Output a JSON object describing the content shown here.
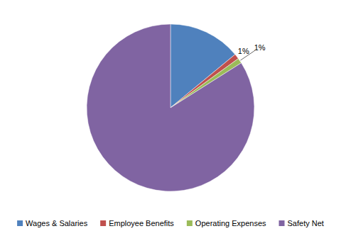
{
  "chart_data": {
    "type": "pie",
    "categories": [
      "Wages & Salaries",
      "Employee Benefits",
      "Operating Expenses",
      "Safety Net"
    ],
    "values": [
      14,
      1,
      1,
      84
    ],
    "colors": [
      "#4f81bd",
      "#c0504d",
      "#9bbb59",
      "#8064a2"
    ],
    "data_labels": true,
    "legend": "bottom"
  }
}
